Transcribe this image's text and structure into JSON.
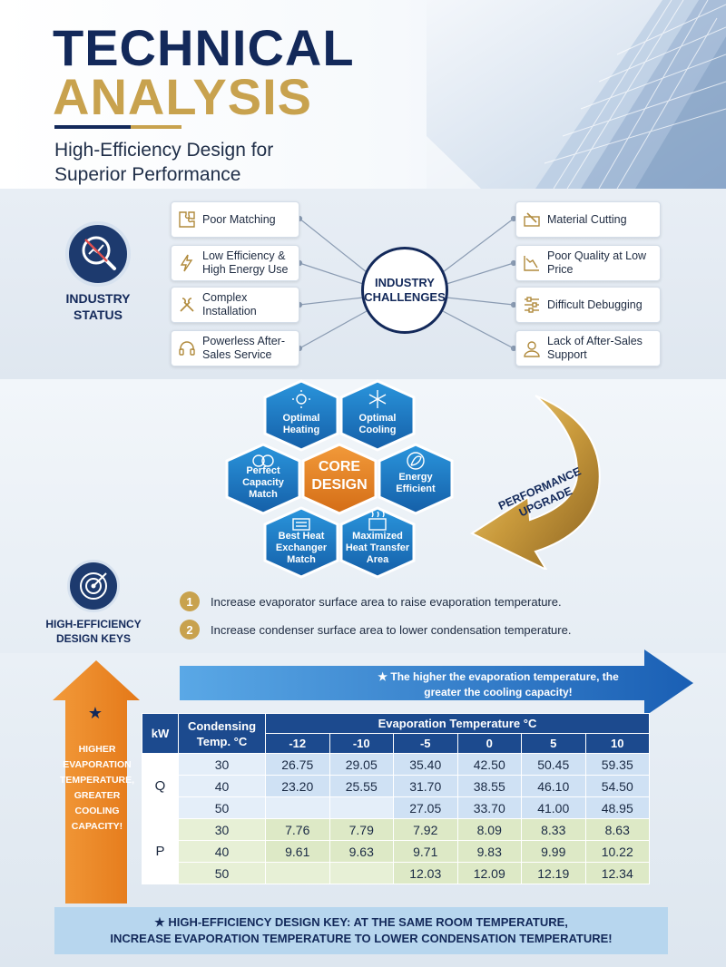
{
  "header": {
    "title_line1": "TECHNICAL",
    "title_line2": "ANALYSIS",
    "subtitle": "High-Efficiency Design for Superior Performance"
  },
  "industry": {
    "label": "INDUSTRY STATUS",
    "hub": "INDUSTRY CHALLENGES",
    "left_items": [
      {
        "label": "Poor Matching",
        "icon": "puzzle-icon"
      },
      {
        "label": "Low Efficiency & High Energy Use",
        "icon": "lightning-icon"
      },
      {
        "label": "Complex Installation",
        "icon": "tools-icon"
      },
      {
        "label": "Powerless After-Sales Service",
        "icon": "headset-icon"
      }
    ],
    "right_items": [
      {
        "label": "Material Cutting",
        "icon": "cutting-icon"
      },
      {
        "label": "Poor Quality at Low Price",
        "icon": "declining-chart-icon"
      },
      {
        "label": "Difficult Debugging",
        "icon": "sliders-icon"
      },
      {
        "label": "Lack of After-Sales Support",
        "icon": "person-icon"
      }
    ]
  },
  "core": {
    "center": "CORE DESIGN",
    "hexes": [
      {
        "label": "Optimal Heating",
        "icon": "sun-icon"
      },
      {
        "label": "Optimal Cooling",
        "icon": "snowflake-icon"
      },
      {
        "label": "Energy Efficient",
        "icon": "leaf-icon"
      },
      {
        "label": "Maximized Heat Transfer Area",
        "icon": "heat-transfer-icon"
      },
      {
        "label": "Best Heat Exchanger Match",
        "icon": "exchanger-icon"
      },
      {
        "label": "Perfect Capacity Match",
        "icon": "rings-icon"
      }
    ],
    "performance_upgrade": "PERFORMANCE UPGRADE"
  },
  "keys": {
    "label": "HIGH-EFFICIENCY DESIGN KEYS",
    "items": [
      {
        "num": "1",
        "text": "Increase evaporator surface area to raise evaporation temperature."
      },
      {
        "num": "2",
        "text": "Increase condenser surface area to lower condensation temperature."
      }
    ]
  },
  "arrows": {
    "vertical_text": "HIGHER EVAPORATION TEMPERATURE, GREATER COOLING CAPACITY!",
    "horizontal_text": "The higher the evaporation temperature, the greater the cooling capacity!",
    "star": "★"
  },
  "table": {
    "unit_header": "kW",
    "cond_header": "Condensing Temp. °C",
    "evap_header": "Evaporation Temperature °C",
    "evap_temps": [
      "-12",
      "-10",
      "-5",
      "0",
      "5",
      "10"
    ],
    "q_label": "Q",
    "p_label": "P",
    "q_rows": [
      {
        "cond": "30",
        "values": [
          "26.75",
          "29.05",
          "35.40",
          "42.50",
          "50.45",
          "59.35"
        ]
      },
      {
        "cond": "40",
        "values": [
          "23.20",
          "25.55",
          "31.70",
          "38.55",
          "46.10",
          "54.50"
        ]
      },
      {
        "cond": "50",
        "values": [
          "",
          "",
          "27.05",
          "33.70",
          "41.00",
          "48.95"
        ]
      }
    ],
    "p_rows": [
      {
        "cond": "30",
        "values": [
          "7.76",
          "7.79",
          "7.92",
          "8.09",
          "8.33",
          "8.63"
        ]
      },
      {
        "cond": "40",
        "values": [
          "9.61",
          "9.63",
          "9.71",
          "9.83",
          "9.99",
          "10.22"
        ]
      },
      {
        "cond": "50",
        "values": [
          "",
          "",
          "12.03",
          "12.09",
          "12.19",
          "12.34"
        ]
      }
    ]
  },
  "footer": {
    "line1": "★ HIGH-EFFICIENCY DESIGN KEY: AT THE SAME ROOM TEMPERATURE,",
    "line2": "INCREASE EVAPORATION TEMPERATURE TO LOWER CONDENSATION TEMPERATURE!"
  },
  "colors": {
    "navy": "#13295a",
    "gold": "#c8a24e",
    "hex_blue": "#1f7fc9",
    "hex_orange": "#e8892a",
    "orange_arrow": "#ee8a2a",
    "blue_arrow": "#1f6fc4"
  }
}
